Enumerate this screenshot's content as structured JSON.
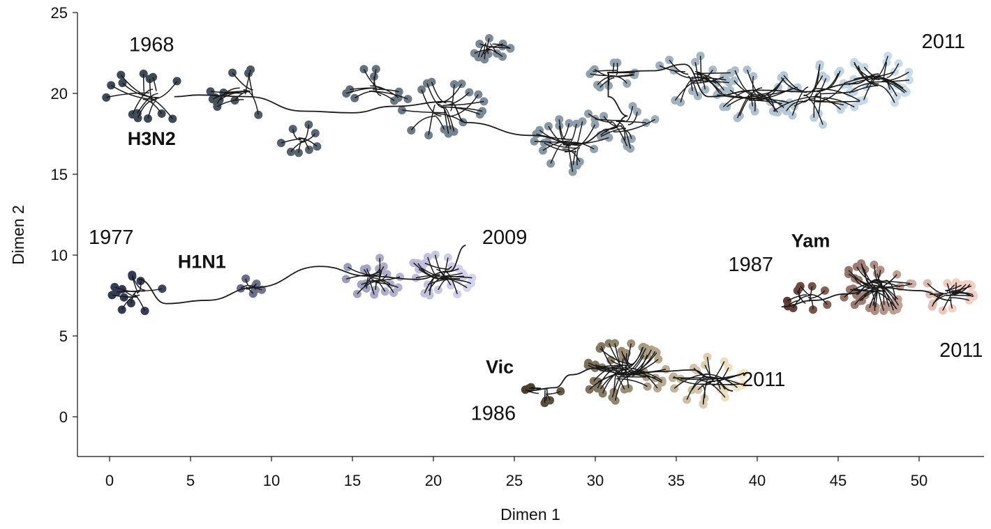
{
  "chart_data": {
    "type": "scatter",
    "xlabel": "Dimen 1",
    "ylabel": "Dimen 2",
    "xlim": [
      -2,
      54
    ],
    "ylim": [
      -2.5,
      25
    ],
    "xticks": [
      0,
      5,
      10,
      15,
      20,
      25,
      30,
      35,
      40,
      45,
      50
    ],
    "yticks": [
      0,
      5,
      10,
      15,
      20,
      25
    ],
    "grid": false,
    "series": [
      {
        "name": "H3N2",
        "start_label": "1968",
        "end_label": "2011",
        "color_start": "#3e4a55",
        "color_end": "#c9dce9",
        "trunk": [
          [
            4,
            19.8
          ],
          [
            5.5,
            19.9
          ],
          [
            8.5,
            19.8
          ],
          [
            12,
            18.9
          ],
          [
            15,
            18.8
          ],
          [
            17.5,
            19.2
          ],
          [
            21,
            19.5
          ],
          [
            22,
            18.2
          ],
          [
            26,
            17.4
          ],
          [
            29,
            16.9
          ],
          [
            31,
            17.8
          ],
          [
            32,
            18.6
          ],
          [
            30.8,
            19.8
          ],
          [
            30.8,
            21.3
          ],
          [
            33.5,
            21.4
          ],
          [
            35.5,
            21.8
          ],
          [
            37,
            19.8
          ],
          [
            40,
            20.2
          ],
          [
            43,
            20.1
          ],
          [
            46,
            20.6
          ],
          [
            47.5,
            21.2
          ]
        ],
        "clusters": [
          {
            "cx": 2.5,
            "cy": 19.8,
            "r": 2.6,
            "n": 14
          },
          {
            "cx": 8.5,
            "cy": 20.0,
            "r": 2.2,
            "n": 12
          },
          {
            "cx": 12.0,
            "cy": 17.2,
            "r": 1.4,
            "n": 8
          },
          {
            "cx": 16.5,
            "cy": 20.2,
            "r": 2.0,
            "n": 10
          },
          {
            "cx": 20.5,
            "cy": 19.0,
            "r": 2.6,
            "n": 18
          },
          {
            "cx": 23.5,
            "cy": 22.9,
            "r": 1.3,
            "n": 14
          },
          {
            "cx": 28.5,
            "cy": 16.8,
            "r": 2.4,
            "n": 20
          },
          {
            "cx": 31.5,
            "cy": 18.0,
            "r": 2.2,
            "n": 14
          },
          {
            "cx": 31.0,
            "cy": 21.2,
            "r": 1.4,
            "n": 12
          },
          {
            "cx": 36.0,
            "cy": 21.0,
            "r": 2.3,
            "n": 20
          },
          {
            "cx": 40.0,
            "cy": 20.0,
            "r": 2.5,
            "n": 24
          },
          {
            "cx": 43.5,
            "cy": 19.9,
            "r": 2.8,
            "n": 22
          },
          {
            "cx": 47.5,
            "cy": 20.8,
            "r": 2.2,
            "n": 24
          }
        ]
      },
      {
        "name": "H1N1",
        "start_label": "1977",
        "end_label": "2009",
        "color_start": "#353a55",
        "color_end": "#d4d4f2",
        "trunk": [
          [
            1.8,
            8.5
          ],
          [
            3.5,
            7.0
          ],
          [
            6,
            7.2
          ],
          [
            9,
            8.0
          ],
          [
            13,
            9.3
          ],
          [
            16,
            8.7
          ],
          [
            19,
            8.5
          ],
          [
            21,
            9.0
          ],
          [
            22,
            10.6
          ]
        ],
        "clusters": [
          {
            "cx": 1.8,
            "cy": 7.6,
            "r": 1.7,
            "n": 12
          },
          {
            "cx": 8.6,
            "cy": 8.0,
            "r": 0.8,
            "n": 7
          },
          {
            "cx": 16.3,
            "cy": 8.6,
            "r": 1.8,
            "n": 22
          },
          {
            "cx": 20.5,
            "cy": 8.8,
            "r": 2.0,
            "n": 24
          }
        ]
      },
      {
        "name": "Vic",
        "start_label": "1986",
        "end_label": "2011",
        "color_start": "#4a3f2c",
        "color_end": "#f2e4c6",
        "trunk": [
          [
            25.8,
            1.6
          ],
          [
            27.5,
            1.8
          ],
          [
            28.5,
            2.6
          ],
          [
            30,
            3.0
          ],
          [
            32,
            2.6
          ],
          [
            34,
            2.8
          ],
          [
            36,
            2.9
          ],
          [
            37.2,
            2.4
          ],
          [
            38.5,
            1.6
          ]
        ],
        "clusters": [
          {
            "cx": 26.8,
            "cy": 1.6,
            "r": 1.2,
            "n": 7
          },
          {
            "cx": 31.8,
            "cy": 2.8,
            "r": 2.6,
            "n": 44
          },
          {
            "cx": 37.0,
            "cy": 2.3,
            "r": 2.2,
            "n": 26
          }
        ]
      },
      {
        "name": "Yam",
        "start_label": "1987",
        "end_label": "2011",
        "color_start": "#5a3a30",
        "color_end": "#f2d0c4",
        "trunk": [
          [
            41.5,
            6.8
          ],
          [
            43.5,
            7.2
          ],
          [
            45.5,
            7.6
          ],
          [
            47.5,
            8.0
          ],
          [
            50,
            7.8
          ],
          [
            52,
            7.2
          ]
        ],
        "clusters": [
          {
            "cx": 43.0,
            "cy": 7.3,
            "r": 1.6,
            "n": 10
          },
          {
            "cx": 47.5,
            "cy": 8.1,
            "r": 2.3,
            "n": 38
          },
          {
            "cx": 51.8,
            "cy": 7.6,
            "r": 1.6,
            "n": 20
          }
        ]
      }
    ],
    "annotations": [
      {
        "text": "1968",
        "x": 2.6,
        "y": 22.6,
        "kind": "year"
      },
      {
        "text": "2011",
        "x": 51.5,
        "y": 22.8,
        "kind": "year"
      },
      {
        "text": "H3N2",
        "x": 2.6,
        "y": 16.8,
        "kind": "strain"
      },
      {
        "text": "1977",
        "x": 0.1,
        "y": 10.7,
        "kind": "year"
      },
      {
        "text": "H1N1",
        "x": 5.7,
        "y": 9.2,
        "kind": "strain"
      },
      {
        "text": "2009",
        "x": 24.4,
        "y": 10.7,
        "kind": "year"
      },
      {
        "text": "Yam",
        "x": 43.3,
        "y": 10.5,
        "kind": "strain"
      },
      {
        "text": "1987",
        "x": 39.6,
        "y": 9.0,
        "kind": "year"
      },
      {
        "text": "2011",
        "x": 52.6,
        "y": 3.7,
        "kind": "year"
      },
      {
        "text": "Vic",
        "x": 24.1,
        "y": 2.7,
        "kind": "strain"
      },
      {
        "text": "2011",
        "x": 40.4,
        "y": 1.9,
        "kind": "year"
      },
      {
        "text": "1986",
        "x": 23.7,
        "y": -0.2,
        "kind": "year"
      }
    ]
  }
}
